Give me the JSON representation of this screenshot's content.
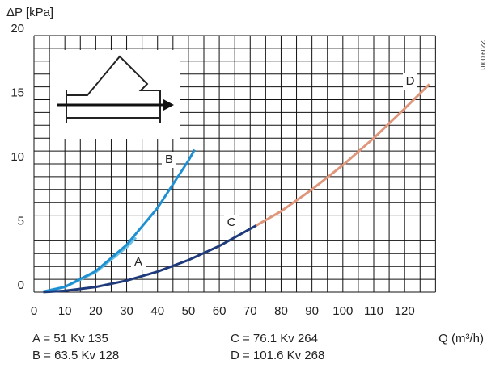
{
  "chart_data": {
    "type": "line",
    "ylabel": "ΔP [kPa]",
    "xlabel": "Q (m³/h)",
    "code": "2209.0001",
    "xlim": [
      0,
      132
    ],
    "ylim": [
      0,
      20
    ],
    "xticks": [
      0,
      10,
      20,
      30,
      40,
      50,
      60,
      70,
      80,
      90,
      100,
      110,
      120
    ],
    "yticks": [
      0,
      5,
      10,
      15,
      20
    ],
    "xgrid": [
      0,
      5,
      10,
      15,
      20,
      25,
      30,
      35,
      40,
      45,
      50,
      55,
      60,
      65,
      70,
      75,
      80,
      85,
      90,
      95,
      100,
      105,
      110,
      115,
      120,
      125,
      130
    ],
    "ygrid": [
      0,
      1,
      2,
      3,
      4,
      5,
      6,
      7,
      8,
      9,
      10,
      11,
      12,
      13,
      14,
      15,
      16,
      17,
      18,
      19,
      20
    ],
    "series": [
      {
        "name": "A",
        "color": "#6cc0e4",
        "x": [
          3,
          10,
          20,
          30,
          33
        ],
        "values": [
          0.04,
          0.39,
          1.56,
          3.5,
          4.25
        ]
      },
      {
        "name": "B",
        "color": "#1e8fd0",
        "x": [
          3,
          10,
          20,
          30,
          40,
          50,
          52
        ],
        "values": [
          0.04,
          0.41,
          1.64,
          3.69,
          6.56,
          10.25,
          11.1
        ]
      },
      {
        "name": "C",
        "color": "#1f3a7a",
        "x": [
          3,
          10,
          20,
          30,
          40,
          50,
          60,
          72
        ],
        "values": [
          0.01,
          0.1,
          0.4,
          0.9,
          1.6,
          2.5,
          3.6,
          5.2
        ]
      },
      {
        "name": "D",
        "color": "#e0967a",
        "x": [
          72,
          80,
          90,
          100,
          110,
          120,
          128
        ],
        "values": [
          5.2,
          6.3,
          8.0,
          9.9,
          12.0,
          14.3,
          16.2
        ]
      }
    ],
    "notes": [
      "A = 51 Kv 135",
      "B = 63.5 Kv 128",
      "C = 76.1 Kv 264",
      "D = 101.6 Kv 268"
    ]
  }
}
